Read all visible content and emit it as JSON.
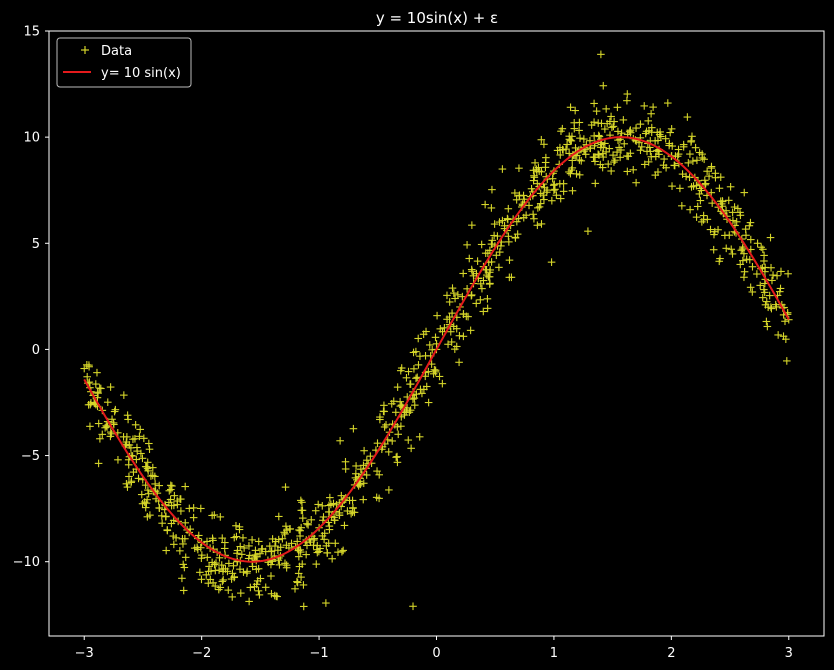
{
  "chart_data": {
    "type": "scatter",
    "title": "y = 10sin(x) + ε",
    "xlabel": "",
    "ylabel": "",
    "xlim": [
      -3.3,
      3.3
    ],
    "ylim": [
      -13.5,
      15
    ],
    "x_ticks": [
      -3,
      -2,
      -1,
      0,
      1,
      2,
      3
    ],
    "y_ticks": [
      -10,
      -5,
      0,
      5,
      10,
      15
    ],
    "x_tick_labels": [
      "−3",
      "−2",
      "−1",
      "0",
      "1",
      "2",
      "3"
    ],
    "y_tick_labels": [
      "−10",
      "−5",
      "0",
      "5",
      "10",
      "15"
    ],
    "grid": false,
    "legend_position": "upper-left",
    "series": [
      {
        "name": "Data",
        "kind": "scatter",
        "marker": "+",
        "color": "#d6d62a",
        "n_points": 1000,
        "x_range": [
          -3,
          3
        ],
        "model": "10*sin(x) + noise",
        "noise_sd": 1.0,
        "sample_points": [
          [
            -3.0,
            -0.9
          ],
          [
            -2.9,
            -2.6
          ],
          [
            -2.8,
            -3.4
          ],
          [
            -2.6,
            -5.0
          ],
          [
            -2.4,
            -6.7
          ],
          [
            -2.2,
            -8.1
          ],
          [
            -2.0,
            -9.1
          ],
          [
            -1.8,
            -9.7
          ],
          [
            -1.57,
            -10.0
          ],
          [
            -1.4,
            -9.9
          ],
          [
            -1.2,
            -9.3
          ],
          [
            -1.0,
            -8.4
          ],
          [
            -0.8,
            -7.2
          ],
          [
            -0.6,
            -5.6
          ],
          [
            -0.4,
            -3.9
          ],
          [
            -0.2,
            -2.0
          ],
          [
            0.0,
            0.0
          ],
          [
            0.2,
            2.0
          ],
          [
            0.4,
            3.9
          ],
          [
            0.6,
            5.6
          ],
          [
            0.8,
            7.2
          ],
          [
            1.0,
            8.4
          ],
          [
            1.2,
            9.3
          ],
          [
            1.4,
            9.9
          ],
          [
            1.57,
            10.0
          ],
          [
            1.8,
            9.7
          ],
          [
            2.0,
            9.1
          ],
          [
            2.2,
            8.1
          ],
          [
            2.4,
            6.7
          ],
          [
            2.6,
            5.2
          ],
          [
            2.8,
            3.3
          ],
          [
            3.0,
            1.4
          ],
          [
            1.4,
            13.9
          ],
          [
            -0.2,
            -12.1
          ]
        ]
      },
      {
        "name": "y= 10 sin(x)",
        "kind": "line",
        "color": "#e41a1c",
        "x": [
          -3.0,
          -2.75,
          -2.5,
          -2.25,
          -2.0,
          -1.75,
          -1.5,
          -1.25,
          -1.0,
          -0.75,
          -0.5,
          -0.25,
          0.0,
          0.25,
          0.5,
          0.75,
          1.0,
          1.25,
          1.5,
          1.75,
          2.0,
          2.25,
          2.5,
          2.75,
          3.0
        ],
        "y": [
          -1.41,
          -3.82,
          -5.98,
          -7.78,
          -9.09,
          -9.84,
          -9.97,
          -9.49,
          -8.41,
          -6.82,
          -4.79,
          -2.47,
          0.0,
          2.47,
          4.79,
          6.82,
          8.41,
          9.49,
          9.97,
          9.84,
          9.09,
          7.78,
          5.98,
          3.82,
          1.41
        ]
      }
    ]
  }
}
